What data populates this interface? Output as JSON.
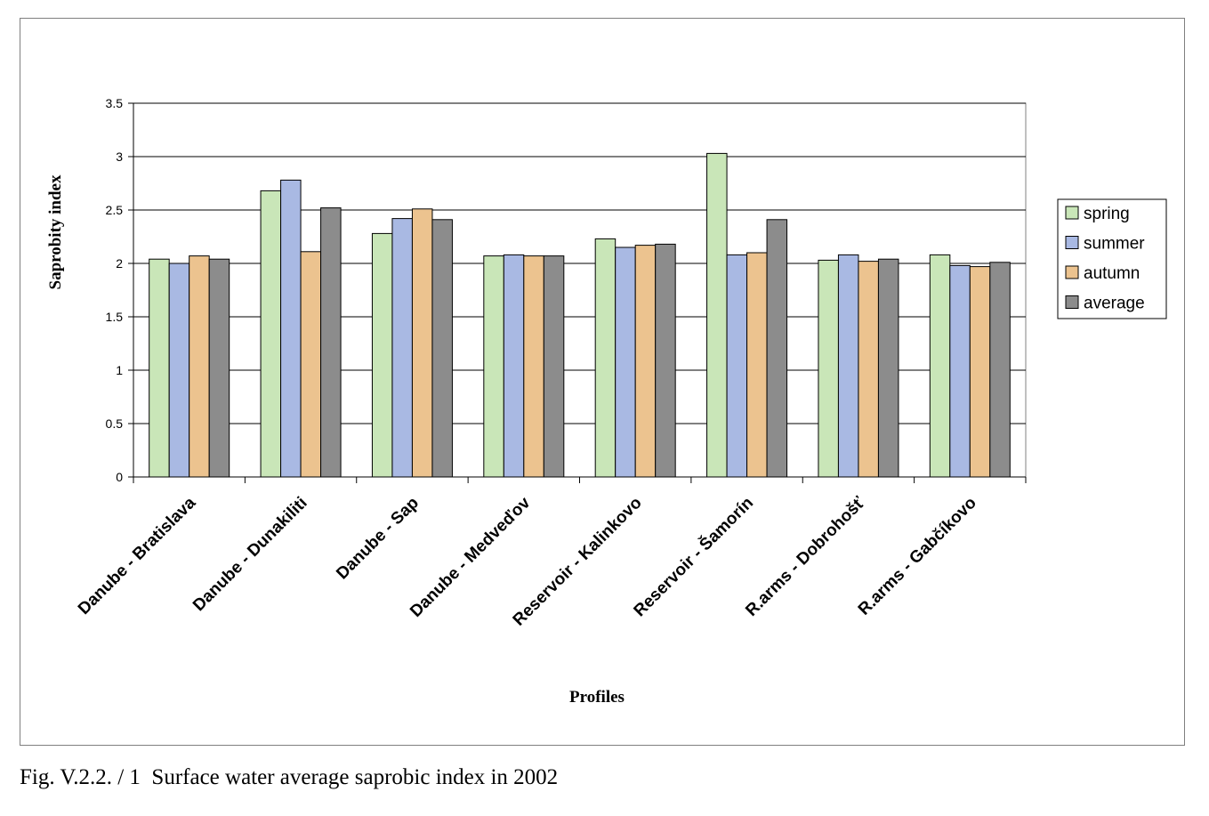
{
  "caption": "Fig. V.2.2. / 1  Surface water average saprobic index in 2002",
  "chart_data": {
    "type": "bar",
    "xlabel": "Profiles",
    "ylabel": "Saprobity index",
    "ylim": [
      0,
      3.5
    ],
    "yticks": [
      "0",
      "0.5",
      "1",
      "1.5",
      "2",
      "2.5",
      "3",
      "3.5"
    ],
    "grid": true,
    "legend_position": "right",
    "categories": [
      "Danube - Bratislava",
      "Danube - Dunakiliti",
      "Danube - Sap",
      "Danube - Medveďov",
      "Reservoir - Kalinkovo",
      "Reservoir - Šamorín",
      "R.arms - Dobrohošť",
      "R.arms - Gabčíkovo"
    ],
    "series": [
      {
        "name": "spring",
        "color": "#c9e6b8",
        "values": [
          2.04,
          2.68,
          2.28,
          2.07,
          2.23,
          3.03,
          2.03,
          2.08
        ]
      },
      {
        "name": "summer",
        "color": "#a9b9e3",
        "values": [
          2.0,
          2.78,
          2.42,
          2.08,
          2.15,
          2.08,
          2.08,
          1.98
        ]
      },
      {
        "name": "autumn",
        "color": "#ecc38f",
        "values": [
          2.07,
          2.11,
          2.51,
          2.07,
          2.17,
          2.1,
          2.02,
          1.97
        ]
      },
      {
        "name": "average",
        "color": "#8c8c8c",
        "values": [
          2.04,
          2.52,
          2.41,
          2.07,
          2.18,
          2.41,
          2.04,
          2.01
        ]
      }
    ]
  }
}
